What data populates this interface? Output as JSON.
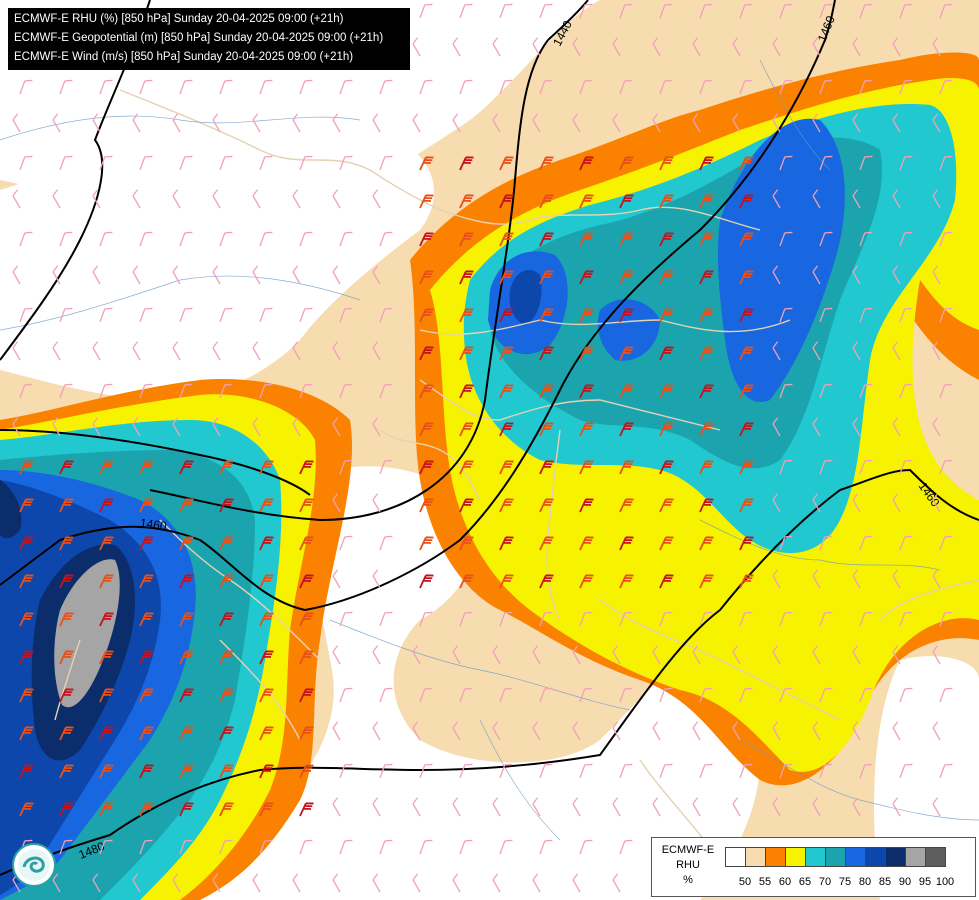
{
  "header": {
    "line1": "ECMWF-E RHU (%) [850 hPa] Sunday 20-04-2025 09:00 (+21h)",
    "line2": "ECMWF-E Geopotential (m) [850 hPa] Sunday 20-04-2025 09:00 (+21h)",
    "line3": "ECMWF-E Wind (m/s) [850 hPa] Sunday 20-04-2025 09:00 (+21h)"
  },
  "contours": {
    "label_a": "1440",
    "label_b": "1460",
    "label_c": "1460",
    "label_d": "1460",
    "label_e": "1480"
  },
  "legend": {
    "model": "ECMWF-E",
    "variable": "RHU",
    "unit": "%",
    "ticks": [
      "50",
      "55",
      "60",
      "65",
      "70",
      "75",
      "80",
      "85",
      "90",
      "95",
      "100"
    ],
    "colors": [
      "#ffffff",
      "#f7dcb0",
      "#fa8200",
      "#f7f200",
      "#21c8cf",
      "#1ba4ad",
      "#1866e0",
      "#0d47ab",
      "#0c2d6b",
      "#a5a5a5",
      "#5e5e5e"
    ]
  },
  "logo": {
    "name": "weather-service-logo-icon"
  }
}
